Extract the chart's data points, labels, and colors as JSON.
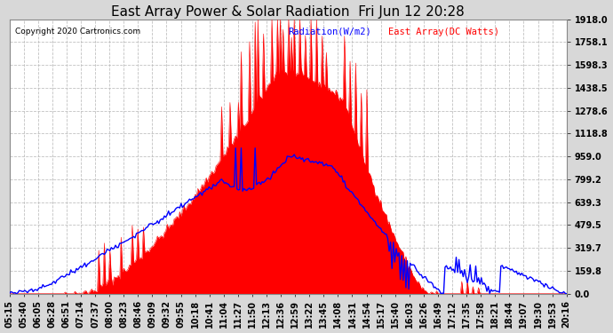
{
  "title": "East Array Power & Solar Radiation  Fri Jun 12 20:28",
  "copyright": "Copyright 2020 Cartronics.com",
  "legend_radiation": "Radiation(W/m2)",
  "legend_east_array": "East Array(DC Watts)",
  "background_color": "#d8d8d8",
  "plot_bg_color": "#ffffff",
  "radiation_color": "#0000ff",
  "array_color": "#ff0000",
  "grid_color": "#bbbbbb",
  "title_fontsize": 11,
  "tick_fontsize": 7,
  "ymin": 0.0,
  "ymax": 1918.0,
  "yticks": [
    0.0,
    159.8,
    319.7,
    479.5,
    639.3,
    799.2,
    959.0,
    1118.8,
    1278.6,
    1438.5,
    1598.3,
    1758.1,
    1918.0
  ],
  "x_labels": [
    "05:15",
    "05:40",
    "06:05",
    "06:28",
    "06:51",
    "07:14",
    "07:37",
    "08:00",
    "08:23",
    "08:46",
    "09:09",
    "09:32",
    "09:55",
    "10:18",
    "10:41",
    "11:04",
    "11:27",
    "11:50",
    "12:13",
    "12:36",
    "12:59",
    "13:22",
    "13:45",
    "14:08",
    "14:31",
    "14:54",
    "15:17",
    "15:40",
    "16:03",
    "16:26",
    "16:49",
    "17:12",
    "17:35",
    "17:58",
    "18:21",
    "18:44",
    "19:07",
    "19:30",
    "19:53",
    "20:16"
  ]
}
